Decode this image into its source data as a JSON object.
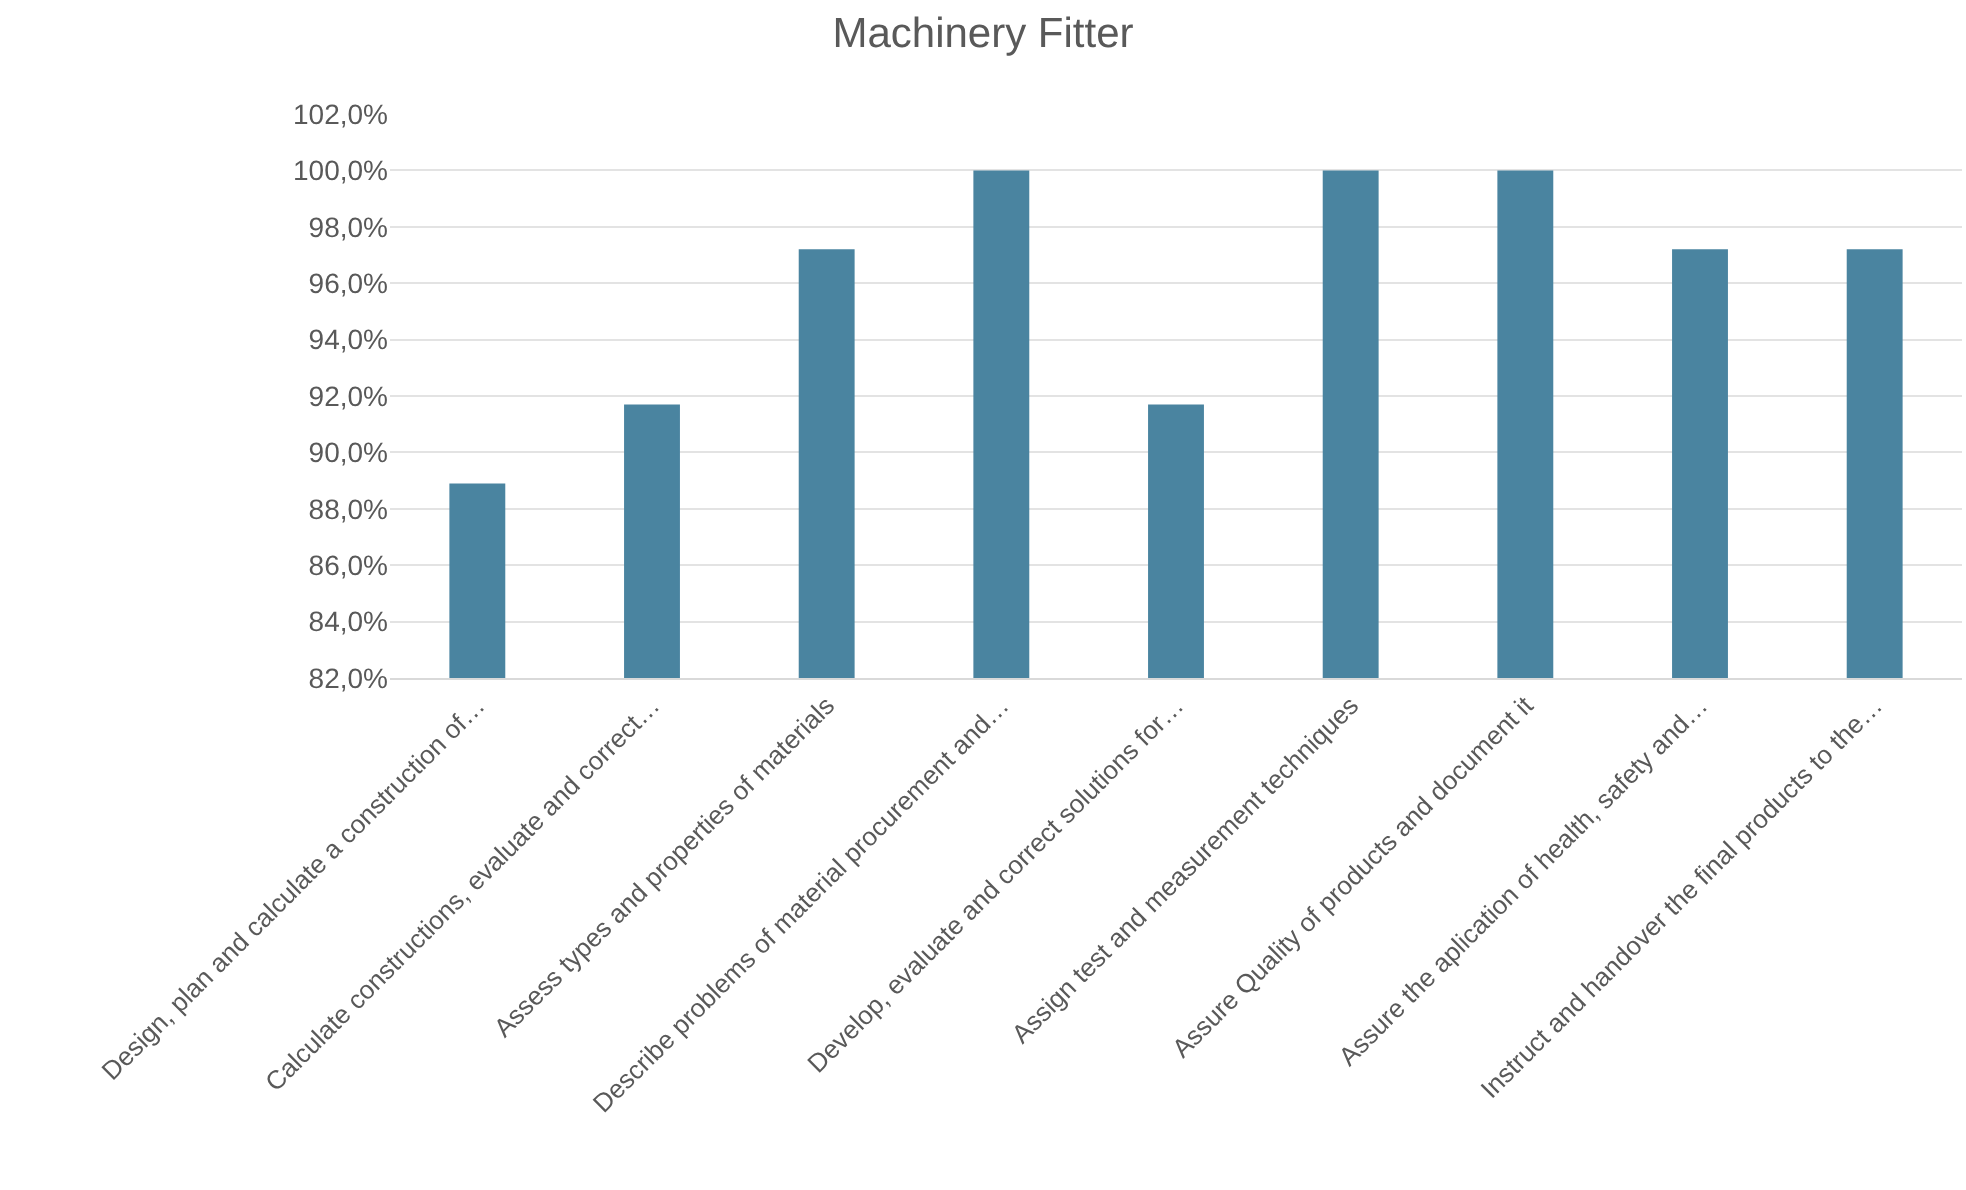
{
  "chart_data": {
    "type": "bar",
    "title": "Machinery Fitter",
    "categories": [
      "Design, plan and calculate a construction of…",
      "Calculate constructions, evaluate and correct…",
      "Assess types and properties of materials",
      "Describe problems of material procurement and…",
      "Develop, evaluate and correct solutions for…",
      "Assign test and measurement techniques",
      "Assure Quality of products and document it",
      "Assure the aplication of health, safety and…",
      "Instruct and handover the final products to the…"
    ],
    "values": [
      88.9,
      91.7,
      97.2,
      100,
      91.7,
      100,
      100,
      97.2,
      97.2
    ],
    "color": "#4a84a0",
    "ylim": [
      82,
      102
    ],
    "yticks": [
      {
        "value": 82,
        "label": "82,0%"
      },
      {
        "value": 84,
        "label": "84,0%"
      },
      {
        "value": 86,
        "label": "86,0%"
      },
      {
        "value": 88,
        "label": "88,0%"
      },
      {
        "value": 90,
        "label": "90,0%"
      },
      {
        "value": 92,
        "label": "92,0%"
      },
      {
        "value": 94,
        "label": "94,0%"
      },
      {
        "value": 96,
        "label": "96,0%"
      },
      {
        "value": 98,
        "label": "98,0%"
      },
      {
        "value": 100,
        "label": "100,0%"
      },
      {
        "value": 102,
        "label": "102,0%"
      }
    ],
    "grid": "y"
  }
}
